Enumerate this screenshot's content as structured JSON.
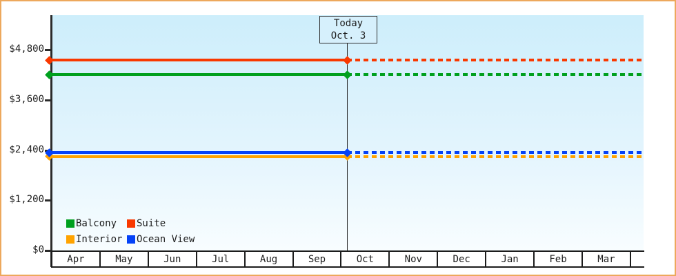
{
  "theme": {
    "frame_border": "#eda85c",
    "plot_bg_top": "#cdeefb",
    "plot_bg_bottom": "#f8fdff",
    "axis_color": "#2b2b2b",
    "text_color": "#1c1c1c",
    "today_box_bg": "#d6f0fc"
  },
  "y_axis": {
    "tick_labels": [
      "$4,800",
      "$3,600",
      "$2,400",
      "$1,200",
      "$0"
    ]
  },
  "legend": {
    "items": [
      {
        "label": "Balcony",
        "color": "#00a01e"
      },
      {
        "label": "Suite",
        "color": "#f93800"
      },
      {
        "label": "Interior",
        "color": "#ffa300"
      },
      {
        "label": "Ocean View",
        "color": "#0442f8"
      }
    ]
  },
  "chart_data": {
    "type": "line",
    "title": "",
    "x_categories": [
      "Apr",
      "May",
      "Jun",
      "Jul",
      "Aug",
      "Sep",
      "Oct",
      "Nov",
      "Dec",
      "Jan",
      "Feb",
      "Mar"
    ],
    "y_ticks": [
      0,
      1200,
      2400,
      3600,
      4800
    ],
    "y_tick_labels_top_to_bottom": [
      "$4,800",
      "$3,600",
      "$2,400",
      "$1,200",
      "$0"
    ],
    "ylim": [
      0,
      5625
    ],
    "grid": false,
    "legend_position": "bottom-left inside plot",
    "series": [
      {
        "name": "Suite",
        "color": "#f93800",
        "value": 4550,
        "marker": "diamond"
      },
      {
        "name": "Balcony",
        "color": "#00a01e",
        "value": 4200,
        "marker": "diamond"
      },
      {
        "name": "Interior",
        "color": "#ffa300",
        "value": 2250,
        "marker": "diamond"
      },
      {
        "name": "Ocean View",
        "color": "#0442f8",
        "value": 2340,
        "marker": "diamond"
      }
    ],
    "series_note": "Each cabin-category price is flat across all months Apr-Mar; lines are solid from the axis through today (Oct. 3) with endpoint markers, then dotted projection to end of chart. Values estimated from the $0-$4,800 axis scale.",
    "today": {
      "label": "Today",
      "date": "Oct. 3"
    }
  }
}
